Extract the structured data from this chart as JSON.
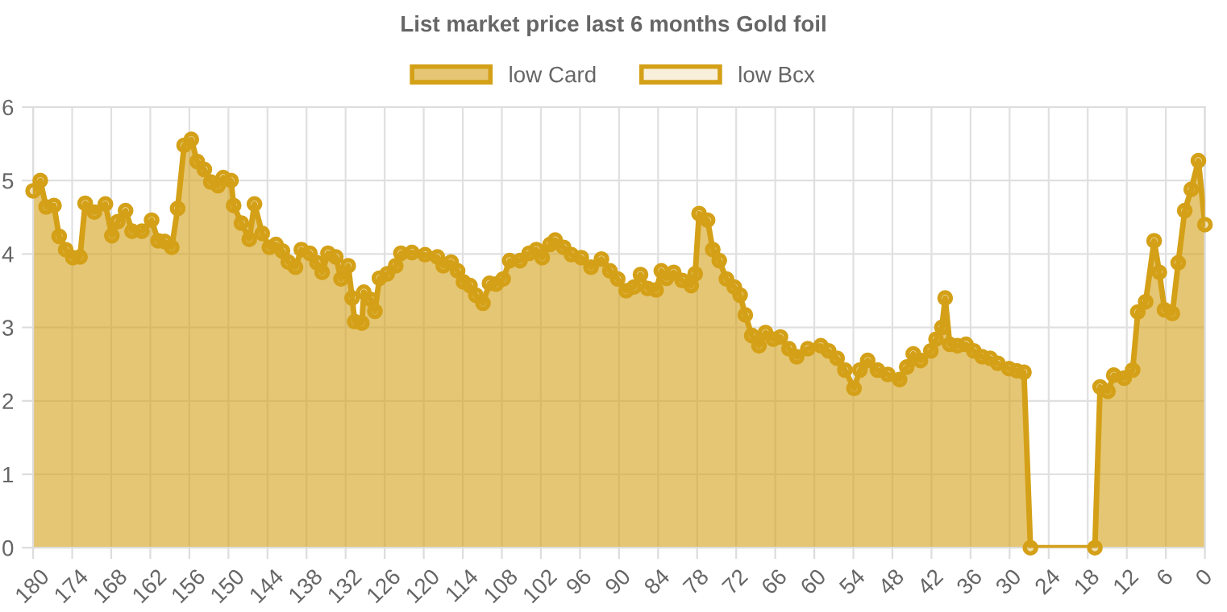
{
  "chart_data": {
    "type": "area",
    "title": "List market price last 6 months Gold foil",
    "xlim": [
      180,
      0
    ],
    "xticks": [
      180,
      174,
      168,
      162,
      156,
      150,
      144,
      138,
      132,
      126,
      120,
      114,
      108,
      102,
      96,
      90,
      84,
      78,
      72,
      66,
      60,
      54,
      48,
      42,
      36,
      30,
      24,
      18,
      12,
      6,
      0
    ],
    "ylim": [
      0,
      6
    ],
    "yticks": [
      0,
      1,
      2,
      3,
      4,
      5,
      6
    ],
    "grid": true,
    "legend": "top",
    "marker": "circle",
    "line_style": "solid",
    "series": [
      {
        "name": "low Card",
        "color": "#d4a017",
        "x": [
          180,
          178.9,
          178,
          176.8,
          176,
          175,
          173.9,
          172.8,
          172,
          170.6,
          168.9,
          167.9,
          167,
          165.8,
          164.8,
          163.3,
          161.8,
          160.8,
          159.8,
          158.7,
          157.8,
          156.8,
          155.7,
          154.8,
          153.7,
          152.7,
          151.6,
          150.8,
          149.6,
          149.2,
          148,
          146.8,
          146,
          144.8,
          143.7,
          142.7,
          141.7,
          140.8,
          139.7,
          138.8,
          137.5,
          136.4,
          135.6,
          134.7,
          133.5,
          132.7,
          131.6,
          131.0,
          130.6,
          129.5,
          129.2,
          128.1,
          127.5,
          126.8,
          125.6,
          124.3,
          123.5,
          121.8,
          119.8,
          117.9,
          117,
          115.8,
          114.8,
          113.9,
          112.9,
          112,
          110.9,
          109.9,
          108.9,
          107.8,
          106.8,
          105.2,
          103.8,
          102.7,
          101.8,
          100.6,
          99.8,
          98.5,
          97.3,
          95.8,
          94.3,
          92.7,
          91.4,
          90.2,
          88.9,
          87.7,
          86.7,
          85.6,
          84.3,
          83.5,
          82.7,
          81.6,
          80.3,
          78.9,
          78.3,
          77.7,
          76.4,
          75.6,
          74.6,
          73.5,
          72.3,
          71.4,
          70.6,
          69.6,
          68.5,
          67.5,
          66.3,
          65.2,
          63.9,
          62.7,
          61,
          59,
          57.8,
          56.5,
          55.3,
          53.9,
          53,
          51.8,
          50.3,
          48.7,
          46.9,
          45.8,
          44.8,
          43.7,
          42.1,
          41.3,
          40.4,
          39.9,
          39.2,
          38,
          36.7,
          35.5,
          34.2,
          33,
          31.8,
          30.1,
          28.9,
          27.8,
          26.8,
          16.9,
          16.1,
          14.9,
          14,
          12.4,
          11.1,
          10.3,
          9.1,
          7.8,
          7,
          6.2,
          5,
          4.1,
          3.1,
          2.1,
          1,
          0
        ],
        "values": [
          4.86,
          5.0,
          4.64,
          4.66,
          4.24,
          4.06,
          3.95,
          3.96,
          4.69,
          4.57,
          4.68,
          4.25,
          4.44,
          4.59,
          4.31,
          4.31,
          4.46,
          4.18,
          4.17,
          4.09,
          4.62,
          5.48,
          5.56,
          5.26,
          5.15,
          4.98,
          4.93,
          5.04,
          5.0,
          4.66,
          4.42,
          4.2,
          4.68,
          4.28,
          4.09,
          4.13,
          4.04,
          3.89,
          3.82,
          4.06,
          4.01,
          3.88,
          3.75,
          4.01,
          3.96,
          3.66,
          3.84,
          3.4,
          3.08,
          3.06,
          3.48,
          3.38,
          3.22,
          3.67,
          3.73,
          3.84,
          4.01,
          4.02,
          3.99,
          3.96,
          3.84,
          3.89,
          3.77,
          3.62,
          3.57,
          3.44,
          3.33,
          3.6,
          3.59,
          3.66,
          3.91,
          3.91,
          4.01,
          4.06,
          3.95,
          4.13,
          4.19,
          4.09,
          3.99,
          3.95,
          3.82,
          3.93,
          3.77,
          3.66,
          3.5,
          3.55,
          3.72,
          3.53,
          3.51,
          3.77,
          3.67,
          3.75,
          3.64,
          3.57,
          3.73,
          4.55,
          4.46,
          4.06,
          3.91,
          3.66,
          3.55,
          3.44,
          3.17,
          2.89,
          2.75,
          2.93,
          2.84,
          2.87,
          2.71,
          2.6,
          2.71,
          2.75,
          2.68,
          2.58,
          2.42,
          2.17,
          2.42,
          2.55,
          2.42,
          2.36,
          2.29,
          2.46,
          2.64,
          2.55,
          2.68,
          2.84,
          3.0,
          3.4,
          2.77,
          2.75,
          2.77,
          2.68,
          2.6,
          2.58,
          2.51,
          2.44,
          2.41,
          2.39,
          0,
          0,
          2.19,
          2.13,
          2.35,
          2.31,
          2.42,
          3.21,
          3.35,
          4.18,
          3.75,
          3.24,
          3.19,
          3.88,
          4.59,
          4.88,
          5.27,
          4.4
        ]
      },
      {
        "name": "low Bcx",
        "color": "#e3b54a"
      }
    ]
  }
}
